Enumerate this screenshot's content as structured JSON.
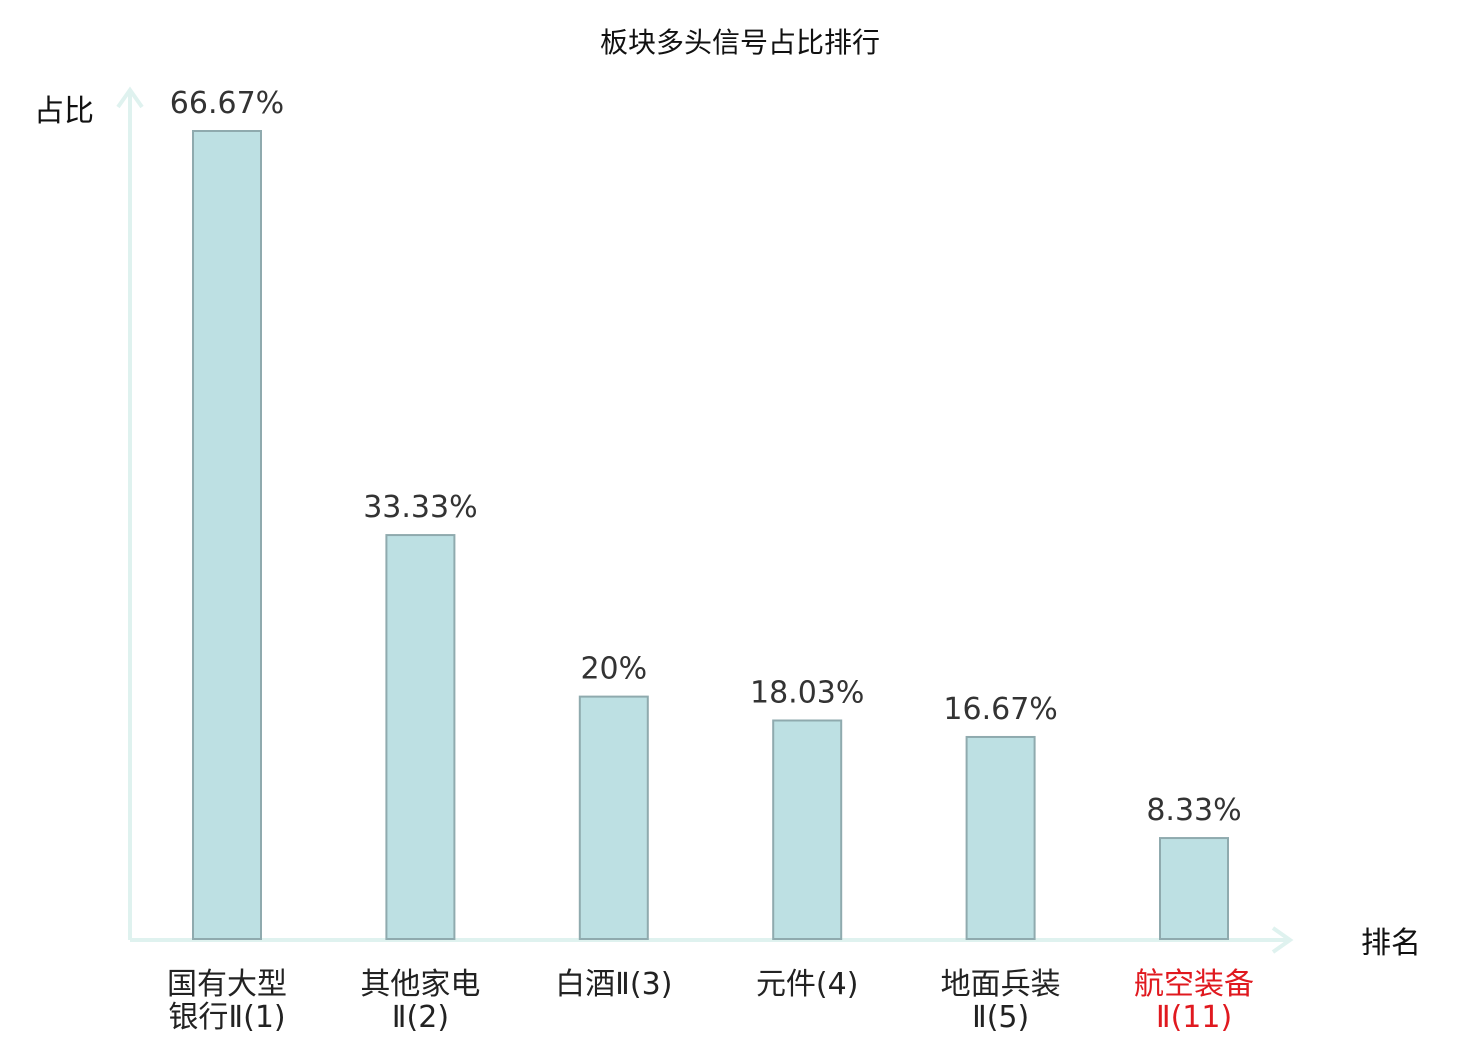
{
  "chart_data": {
    "type": "bar",
    "title": "板块多头信号占比排行",
    "ylabel": "占比",
    "xlabel": "排名",
    "ylim": [
      0,
      70
    ],
    "grid": false,
    "legend": "none",
    "categories": [
      {
        "line1": "国有大型",
        "line2": "银行Ⅱ(1)",
        "highlight": false
      },
      {
        "line1": "其他家电",
        "line2": "Ⅱ(2)",
        "highlight": false
      },
      {
        "line1": "白酒Ⅱ(3)",
        "line2": "",
        "highlight": false
      },
      {
        "line1": "元件(4)",
        "line2": "",
        "highlight": false
      },
      {
        "line1": "地面兵装",
        "line2": "Ⅱ(5)",
        "highlight": false
      },
      {
        "line1": "航空装备",
        "line2": "Ⅱ(11)",
        "highlight": true
      }
    ],
    "values": [
      66.67,
      33.33,
      20,
      18.03,
      16.67,
      8.33
    ],
    "value_labels": [
      "66.67%",
      "33.33%",
      "20%",
      "18.03%",
      "16.67%",
      "8.33%"
    ],
    "colors": {
      "bar_fill": "#bde0e3",
      "bar_stroke": "#8faaae",
      "axis": "#dff2ef",
      "highlight_text": "#e0191f",
      "normal_text": "#222222"
    }
  }
}
